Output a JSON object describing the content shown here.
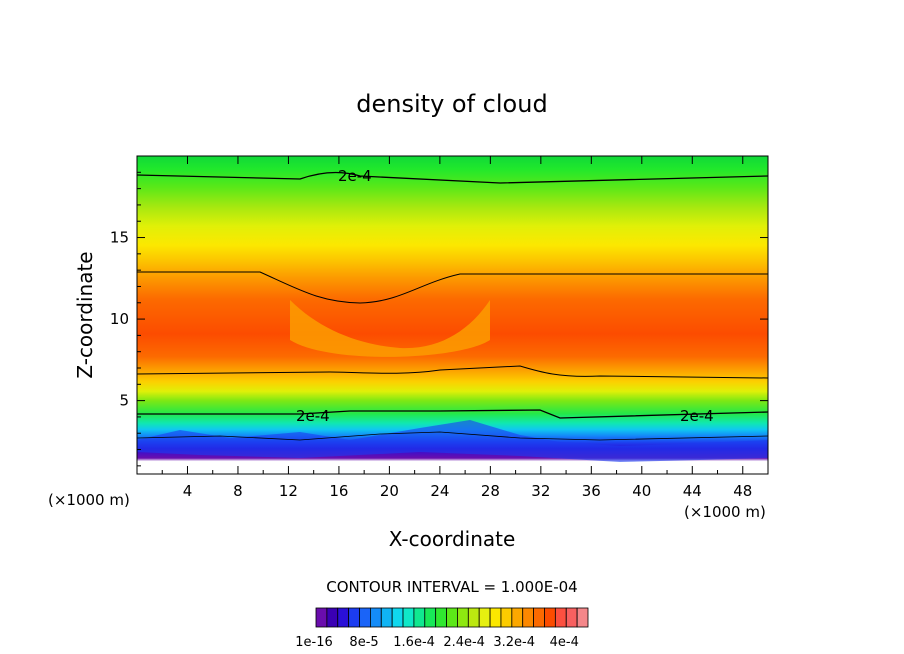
{
  "chart_data": {
    "type": "heatmap",
    "title": "density of cloud",
    "xlabel": "X-coordinate",
    "ylabel": "Z-coordinate",
    "x_unit_left": "(×1000 m)",
    "x_unit_right": "(×1000 m)",
    "xlim": [
      0,
      50
    ],
    "ylim": [
      0.5,
      20
    ],
    "xticks": [
      4,
      8,
      12,
      16,
      20,
      24,
      28,
      32,
      36,
      40,
      44,
      48
    ],
    "yticks": [
      5,
      10,
      15
    ],
    "contour_labels": [
      "2e-4",
      "2e-4",
      "2e-4"
    ],
    "contour_interval_text": "CONTOUR INTERVAL = 1.000E-04",
    "colorbar_labels": [
      "1e-16",
      "8e-5",
      "1.6e-4",
      "2.4e-4",
      "3.2e-4",
      "4e-4"
    ],
    "colorbar_colors": [
      "#6a0dad",
      "#3a00b4",
      "#2a10d8",
      "#1c3cf0",
      "#1a64f8",
      "#148cf8",
      "#10b4f4",
      "#10d8ee",
      "#10e8c8",
      "#10e890",
      "#18e858",
      "#30e830",
      "#5ce818",
      "#8ee810",
      "#bce810",
      "#e6f010",
      "#fce800",
      "#fccc00",
      "#fca800",
      "#fc8800",
      "#fc6a00",
      "#fc4c00",
      "#fc5040",
      "#f86060",
      "#f4878a"
    ],
    "value_range": [
      1e-16,
      0.0004
    ]
  }
}
